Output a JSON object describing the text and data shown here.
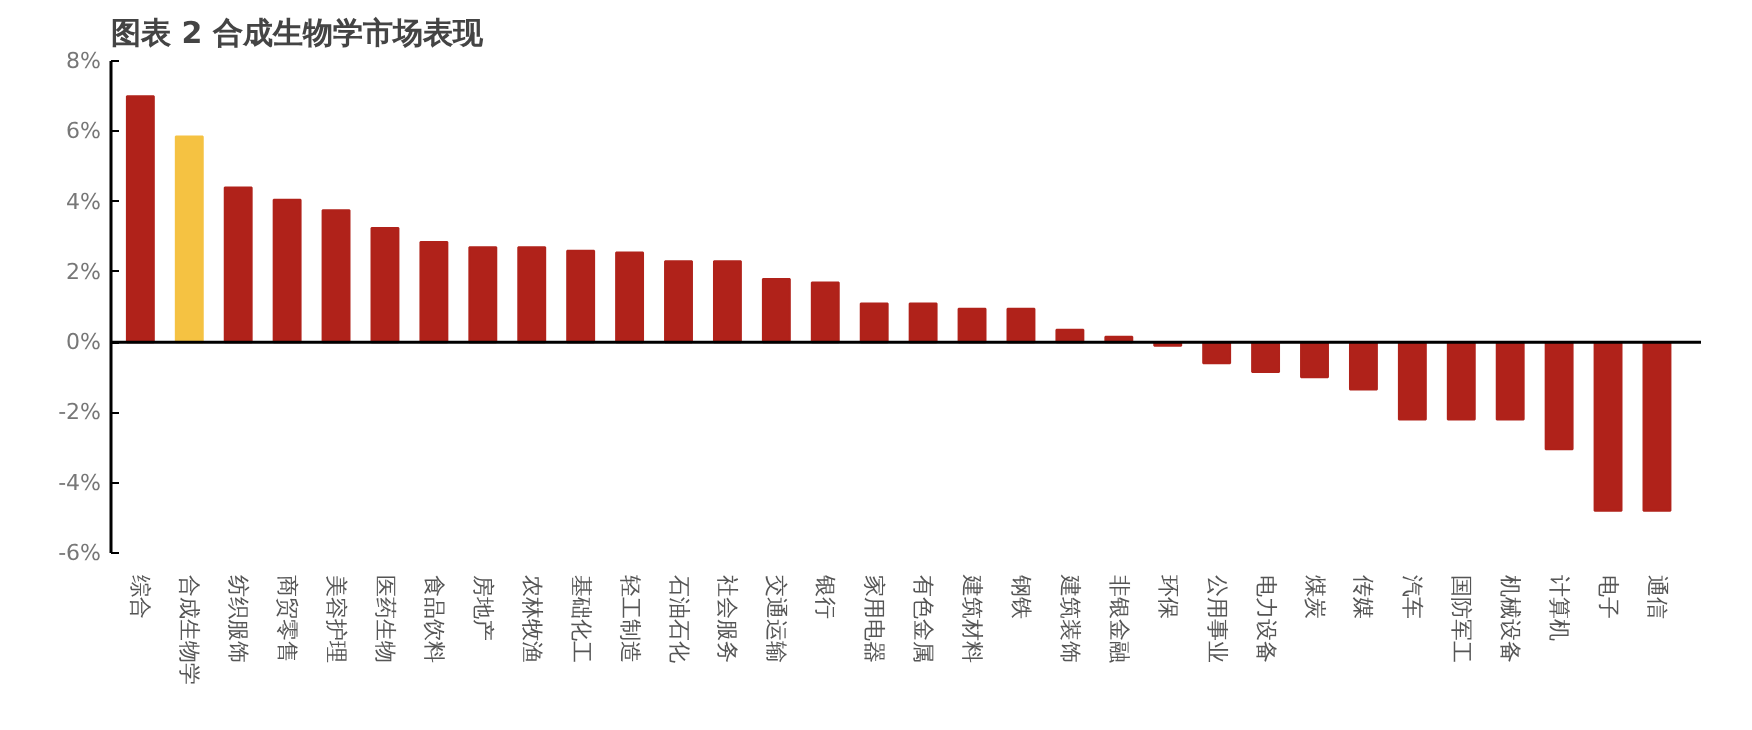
{
  "chart_data": {
    "type": "bar",
    "title": "图表 2 合成生物学市场表现",
    "categories": [
      "综合",
      "合成生物学",
      "纺织服饰",
      "商贸零售",
      "美容护理",
      "医药生物",
      "食品饮料",
      "房地产",
      "农林牧渔",
      "基础化工",
      "轻工制造",
      "石油石化",
      "社会服务",
      "交通运输",
      "银行",
      "家用电器",
      "有色金属",
      "建筑材料",
      "钢铁",
      "建筑装饰",
      "非银金融",
      "环保",
      "公用事业",
      "电力设备",
      "煤炭",
      "传媒",
      "汽车",
      "国防军工",
      "机械设备",
      "计算机",
      "电子",
      "通信"
    ],
    "values": [
      7.0,
      5.85,
      4.4,
      4.05,
      3.75,
      3.25,
      2.85,
      2.7,
      2.7,
      2.6,
      2.55,
      2.3,
      2.3,
      1.8,
      1.7,
      1.1,
      1.1,
      0.95,
      0.95,
      0.35,
      0.15,
      -0.1,
      -0.6,
      -0.85,
      -1.0,
      -1.35,
      -2.2,
      -2.2,
      -2.2,
      -3.05,
      -4.8,
      -4.8
    ],
    "colors": [
      "#b0221a",
      "#f5c242",
      "#b0221a",
      "#b0221a",
      "#b0221a",
      "#b0221a",
      "#b0221a",
      "#b0221a",
      "#b0221a",
      "#b0221a",
      "#b0221a",
      "#b0221a",
      "#b0221a",
      "#b0221a",
      "#b0221a",
      "#b0221a",
      "#b0221a",
      "#b0221a",
      "#b0221a",
      "#b0221a",
      "#b0221a",
      "#b0221a",
      "#b0221a",
      "#b0221a",
      "#b0221a",
      "#b0221a",
      "#b0221a",
      "#b0221a",
      "#b0221a",
      "#b0221a",
      "#b0221a",
      "#b0221a"
    ],
    "ylim": [
      -6,
      8
    ],
    "yticks": [
      {
        "value": -6,
        "label": "-6%"
      },
      {
        "value": -4,
        "label": "-4%"
      },
      {
        "value": -2,
        "label": "-2%"
      },
      {
        "value": 0,
        "label": "0%"
      },
      {
        "value": 2,
        "label": "2%"
      },
      {
        "value": 4,
        "label": "4%"
      },
      {
        "value": 6,
        "label": "6%"
      },
      {
        "value": 8,
        "label": "8%"
      }
    ],
    "tick_labels": "xy"
  }
}
